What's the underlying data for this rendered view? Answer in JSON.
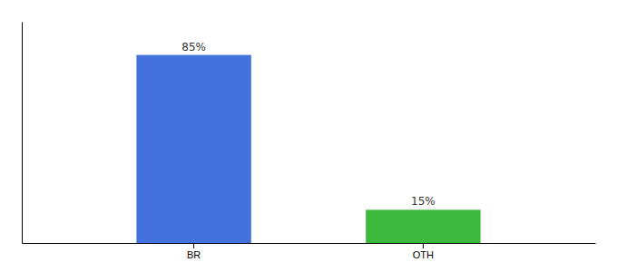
{
  "chart_data": {
    "type": "bar",
    "categories": [
      "BR",
      "OTH"
    ],
    "values": [
      85,
      15
    ],
    "value_labels": [
      "85%",
      "15%"
    ],
    "colors": [
      "#4472DD",
      "#3CB83C"
    ],
    "ylim": [
      0,
      100
    ],
    "data_labels": true,
    "tick_labels": "x"
  }
}
